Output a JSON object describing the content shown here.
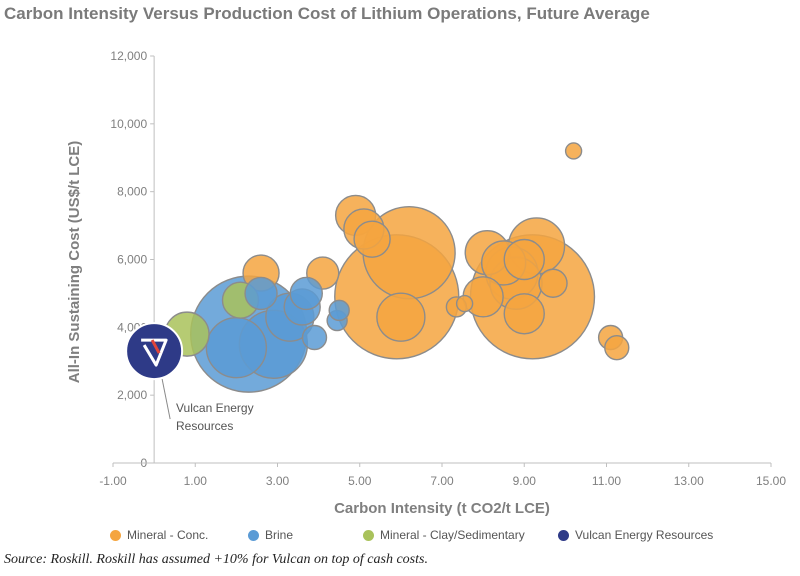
{
  "title": "Carbon Intensity Versus Production Cost of Lithium Operations, Future Average",
  "source": "Source: Roskill. Roskill has assumed +10% for Vulcan on top of cash costs.",
  "chart_data": {
    "type": "bubble",
    "xlabel": "Carbon Intensity (t CO2/t LCE)",
    "ylabel": "All-In Sustaining Cost (US$/t LCE)",
    "xlim": [
      -1,
      15
    ],
    "ylim": [
      0,
      12000
    ],
    "x_ticks": [
      "-1.00",
      "1.00",
      "3.00",
      "5.00",
      "7.00",
      "9.00",
      "11.00",
      "13.00",
      "15.00"
    ],
    "y_ticks": [
      "0",
      "2,000",
      "4,000",
      "6,000",
      "8,000",
      "10,000",
      "12,000"
    ],
    "grid": false,
    "legend_position": "bottom",
    "colors": {
      "Mineral - Conc.": "#f5a53f",
      "Brine": "#5b9bd5",
      "Mineral - Clay/Sedimentary": "#a9c25b",
      "Vulcan Energy Resources": "#2e3a87"
    },
    "series": [
      {
        "name": "Mineral - Conc.",
        "points": [
          {
            "x": 10.2,
            "y": 9200,
            "size": 8
          },
          {
            "x": 11.1,
            "y": 3700,
            "size": 12
          },
          {
            "x": 11.25,
            "y": 3400,
            "size": 12
          },
          {
            "x": 4.9,
            "y": 7300,
            "size": 20
          },
          {
            "x": 5.1,
            "y": 6900,
            "size": 20
          },
          {
            "x": 5.3,
            "y": 6600,
            "size": 18
          },
          {
            "x": 6.2,
            "y": 6200,
            "size": 46
          },
          {
            "x": 5.9,
            "y": 4900,
            "size": 62
          },
          {
            "x": 6.0,
            "y": 4300,
            "size": 24
          },
          {
            "x": 4.1,
            "y": 5600,
            "size": 16
          },
          {
            "x": 2.6,
            "y": 5600,
            "size": 18
          },
          {
            "x": 7.35,
            "y": 4600,
            "size": 10
          },
          {
            "x": 7.55,
            "y": 4700,
            "size": 8
          },
          {
            "x": 9.2,
            "y": 4900,
            "size": 62
          },
          {
            "x": 8.1,
            "y": 6200,
            "size": 22
          },
          {
            "x": 8.7,
            "y": 5600,
            "size": 26
          },
          {
            "x": 9.3,
            "y": 6400,
            "size": 28
          },
          {
            "x": 8.5,
            "y": 5900,
            "size": 22
          },
          {
            "x": 8.8,
            "y": 5300,
            "size": 26
          },
          {
            "x": 8.0,
            "y": 4900,
            "size": 20
          },
          {
            "x": 9.0,
            "y": 4400,
            "size": 20
          },
          {
            "x": 9.7,
            "y": 5300,
            "size": 14
          },
          {
            "x": 9.0,
            "y": 6000,
            "size": 20
          }
        ]
      },
      {
        "name": "Brine",
        "points": [
          {
            "x": 2.3,
            "y": 3800,
            "size": 58
          },
          {
            "x": 2.9,
            "y": 3500,
            "size": 34
          },
          {
            "x": 2.0,
            "y": 3400,
            "size": 30
          },
          {
            "x": 3.3,
            "y": 4300,
            "size": 24
          },
          {
            "x": 3.6,
            "y": 4600,
            "size": 18
          },
          {
            "x": 3.7,
            "y": 5000,
            "size": 16
          },
          {
            "x": 3.9,
            "y": 3700,
            "size": 12
          },
          {
            "x": 2.6,
            "y": 5000,
            "size": 16
          },
          {
            "x": 4.45,
            "y": 4200,
            "size": 10
          },
          {
            "x": 4.5,
            "y": 4500,
            "size": 10
          }
        ]
      },
      {
        "name": "Mineral - Clay/Sedimentary",
        "points": [
          {
            "x": 0.8,
            "y": 3800,
            "size": 22
          },
          {
            "x": 2.1,
            "y": 4800,
            "size": 18
          }
        ]
      },
      {
        "name": "Vulcan Energy Resources",
        "points": [
          {
            "x": 0.0,
            "y": 3300,
            "size": 28
          }
        ]
      }
    ],
    "annotations": [
      {
        "text_lines": [
          "Vulcan Energy",
          "Resources"
        ],
        "x": 0.0,
        "y": 3300
      }
    ],
    "legend": [
      "Mineral - Conc.",
      "Brine",
      "Mineral - Clay/Sedimentary",
      "Vulcan Energy Resources"
    ]
  }
}
